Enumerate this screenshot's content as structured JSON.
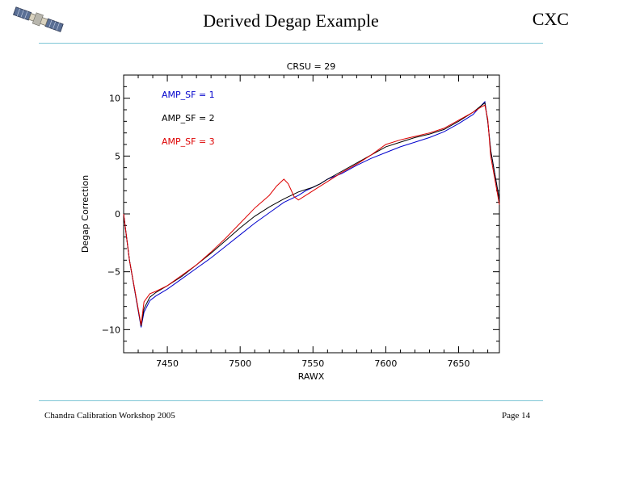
{
  "slide": {
    "title": "Derived Degap Example",
    "org": "CXC",
    "footer_left": "Chandra Calibration Workshop 2005",
    "footer_right": "Page 14",
    "logo_icon": "satellite-icon"
  },
  "colors": {
    "rule": "#7fc7d6",
    "blue": "#0000cc",
    "black": "#000000",
    "red": "#dd0000"
  },
  "chart_data": {
    "type": "line",
    "title": "CRSU = 29",
    "xlabel": "RAWX",
    "ylabel": "Degap Correction",
    "xlim": [
      7420,
      7678
    ],
    "ylim": [
      -12,
      12
    ],
    "xticks": [
      7450,
      7500,
      7550,
      7600,
      7650
    ],
    "xtick_labels": [
      "7450",
      "7500",
      "7550",
      "7600",
      "7650"
    ],
    "yticks": [
      -10,
      -5,
      0,
      5,
      10
    ],
    "ytick_labels": [
      "−10",
      "−5",
      "0",
      "5",
      "10"
    ],
    "legend_position": "top-left",
    "series": [
      {
        "name": "AMP_SF = 1",
        "color": "#0000cc",
        "x": [
          7420,
          7424,
          7432,
          7434,
          7438,
          7442,
          7450,
          7460,
          7470,
          7480,
          7490,
          7500,
          7510,
          7520,
          7530,
          7540,
          7545,
          7550,
          7555,
          7560,
          7570,
          7580,
          7590,
          7600,
          7610,
          7620,
          7630,
          7640,
          7650,
          7660,
          7665,
          7668,
          7670,
          7672,
          7678
        ],
        "y": [
          0,
          -4,
          -9.8,
          -8.5,
          -7.5,
          -7.1,
          -6.5,
          -5.6,
          -4.7,
          -3.8,
          -2.8,
          -1.8,
          -0.8,
          0.1,
          1.0,
          1.6,
          2.0,
          2.3,
          2.6,
          3.0,
          3.5,
          4.2,
          4.8,
          5.3,
          5.8,
          6.2,
          6.6,
          7.1,
          7.8,
          8.6,
          9.3,
          9.7,
          8.0,
          5.5,
          1.2
        ]
      },
      {
        "name": "AMP_SF = 2",
        "color": "#000000",
        "x": [
          7420,
          7424,
          7432,
          7434,
          7438,
          7442,
          7450,
          7460,
          7470,
          7480,
          7490,
          7500,
          7510,
          7520,
          7530,
          7540,
          7545,
          7550,
          7555,
          7560,
          7570,
          7580,
          7590,
          7600,
          7610,
          7620,
          7630,
          7640,
          7650,
          7660,
          7665,
          7668,
          7670,
          7672,
          7678
        ],
        "y": [
          0,
          -4,
          -9.7,
          -8.2,
          -7.2,
          -6.8,
          -6.2,
          -5.4,
          -4.4,
          -3.4,
          -2.3,
          -1.2,
          -0.2,
          0.6,
          1.3,
          1.9,
          2.1,
          2.3,
          2.6,
          3.0,
          3.7,
          4.4,
          5.1,
          5.8,
          6.2,
          6.6,
          6.9,
          7.3,
          8.0,
          8.8,
          9.3,
          9.6,
          8.0,
          5.5,
          1.2
        ]
      },
      {
        "name": "AMP_SF = 3",
        "color": "#dd0000",
        "x": [
          7420,
          7424,
          7432,
          7434,
          7438,
          7442,
          7450,
          7460,
          7470,
          7480,
          7490,
          7500,
          7510,
          7520,
          7525,
          7530,
          7533,
          7537,
          7540,
          7545,
          7550,
          7555,
          7560,
          7570,
          7580,
          7590,
          7600,
          7610,
          7620,
          7630,
          7640,
          7650,
          7660,
          7665,
          7668,
          7670,
          7672,
          7678
        ],
        "y": [
          0,
          -4,
          -9.6,
          -7.6,
          -6.9,
          -6.7,
          -6.2,
          -5.3,
          -4.4,
          -3.3,
          -2.1,
          -0.8,
          0.5,
          1.6,
          2.4,
          3.0,
          2.6,
          1.5,
          1.2,
          1.6,
          2.0,
          2.4,
          2.8,
          3.6,
          4.3,
          5.1,
          6.0,
          6.4,
          6.7,
          7.0,
          7.4,
          8.1,
          8.8,
          9.2,
          9.4,
          8.2,
          5.0,
          0.8
        ]
      }
    ]
  }
}
